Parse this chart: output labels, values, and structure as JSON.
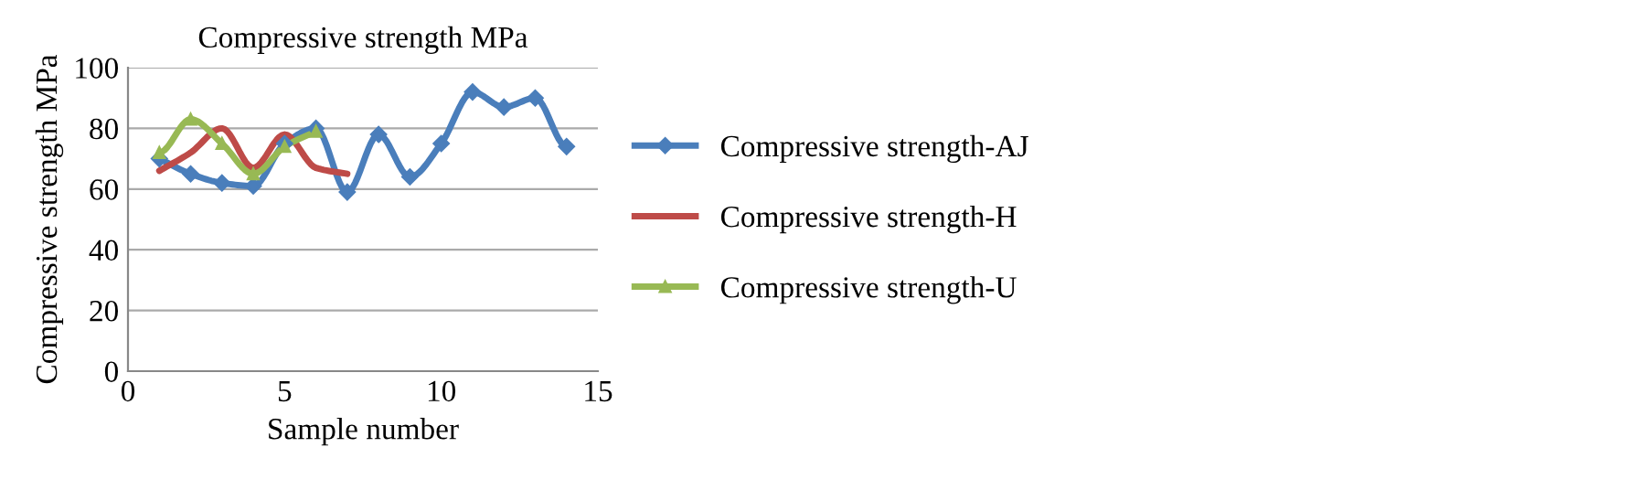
{
  "chart_data": {
    "type": "line",
    "title": "Compressive strength MPa",
    "xlabel": "Sample number",
    "ylabel": "Compressive strength MPa",
    "xlim": [
      0,
      15
    ],
    "xticks": [
      0,
      5,
      10,
      15
    ],
    "ylim": [
      0,
      100
    ],
    "yticks": [
      0,
      20,
      40,
      60,
      80,
      100
    ],
    "grid": "y",
    "legend": "right",
    "series": [
      {
        "name": "Compressive strength-AJ",
        "color": "#4a7ebb",
        "marker": "diamond",
        "x": [
          1,
          2,
          3,
          4,
          5,
          6,
          7,
          8,
          9,
          10,
          11,
          12,
          13,
          14
        ],
        "values": [
          70,
          65,
          62,
          61,
          75,
          80,
          59,
          78,
          64,
          75,
          92,
          87,
          90,
          74
        ]
      },
      {
        "name": "Compressive strength-H",
        "color": "#be4b48",
        "marker": "none",
        "x": [
          1,
          2,
          3,
          4,
          5,
          6,
          7
        ],
        "values": [
          66,
          72,
          80,
          67,
          78,
          67,
          65
        ]
      },
      {
        "name": "Compressive strength-U",
        "color": "#98b954",
        "marker": "triangle",
        "x": [
          1,
          2,
          3,
          4,
          5,
          6
        ],
        "values": [
          72,
          83,
          75,
          65,
          74,
          79
        ]
      }
    ]
  }
}
